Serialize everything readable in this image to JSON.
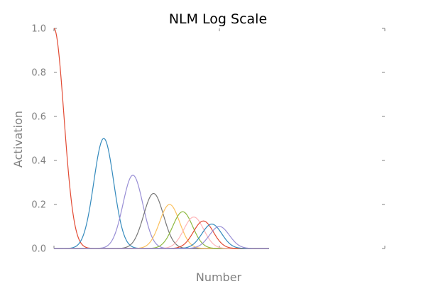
{
  "chart_data": {
    "type": "line",
    "title": "NLM Log Scale",
    "xlabel": "Number",
    "ylabel": "Activation",
    "xscale": "log",
    "xlim": [
      1,
      100
    ],
    "ylim": [
      0,
      1.0
    ],
    "yticks": [
      "0.0",
      "0.2",
      "0.4",
      "0.6",
      "0.8",
      "1.0"
    ],
    "grid": false,
    "legend": "none",
    "curve_model": "log-gaussian tuning curves centered at integers 1–10, each peak = 1/n",
    "series": [
      {
        "center": 1,
        "peak": 1.0,
        "color": "#e24a33"
      },
      {
        "center": 2,
        "peak": 0.5,
        "color": "#348abd"
      },
      {
        "center": 3,
        "peak": 0.333,
        "color": "#988ed5"
      },
      {
        "center": 4,
        "peak": 0.25,
        "color": "#777777"
      },
      {
        "center": 5,
        "peak": 0.2,
        "color": "#fbc15e"
      },
      {
        "center": 6,
        "peak": 0.167,
        "color": "#8eba42"
      },
      {
        "center": 7,
        "peak": 0.143,
        "color": "#ffb5b8"
      },
      {
        "center": 8,
        "peak": 0.125,
        "color": "#e24a33"
      },
      {
        "center": 9,
        "peak": 0.111,
        "color": "#348abd"
      },
      {
        "center": 10,
        "peak": 0.1,
        "color": "#988ed5"
      }
    ]
  }
}
